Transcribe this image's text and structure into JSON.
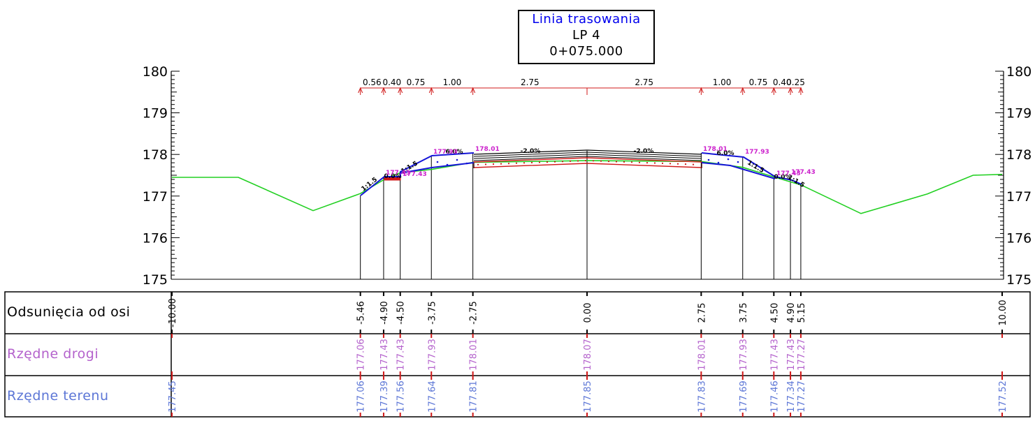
{
  "title_box": {
    "line1": "Linia trasowania",
    "line2": "LP 4",
    "line3": "0+075.000"
  },
  "colors": {
    "ground": "#22d022",
    "road": "#1515d8",
    "layers": "#d01818",
    "ink": "#000000",
    "magenta": "#cc22cc",
    "road_elev": "#b462cc",
    "terrain_elev": "#5c76d6",
    "title_blue": "#0000ee"
  },
  "y_axis": {
    "ticks": [
      "180",
      "179",
      "178",
      "177",
      "176",
      "175"
    ]
  },
  "dimensions": [
    "0.56",
    "0.40",
    "0.75",
    "1.00",
    "2.75",
    "2.75",
    "1.00",
    "0.75",
    "0.40",
    "0.25"
  ],
  "cross_slopes": [
    "-2.0%",
    "-2.0%"
  ],
  "slope_labels": [
    "1:1.5",
    "1:1.5",
    "1:1.5",
    "1:1.5",
    "6.0%",
    "0.0%",
    "6.0%",
    "0.0%"
  ],
  "point_elevations": [
    "178.01",
    "178.01",
    "177.93",
    "177.93",
    "177.43",
    "177.43",
    "177.43",
    "177.43"
  ],
  "table": {
    "rows": [
      {
        "label": "Odsunięcia od osi"
      },
      {
        "label": "Rzędne drogi"
      },
      {
        "label": "Rzędne terenu"
      }
    ],
    "offsets": [
      "-10.00",
      "-5.46",
      "-4.90",
      "-4.50",
      "-3.75",
      "-2.75",
      "0.00",
      "2.75",
      "3.75",
      "4.50",
      "4.90",
      "5.15",
      "10.00"
    ],
    "road_elevations": [
      "177.06",
      "177.43",
      "177.43",
      "177.93",
      "178.01",
      "178.07",
      "178.01",
      "177.93",
      "177.43",
      "177.43",
      "177.27"
    ],
    "terrain_elevations": [
      "177.45",
      "177.06",
      "177.39",
      "177.56",
      "177.64",
      "177.81",
      "177.85",
      "177.83",
      "177.69",
      "177.46",
      "177.34",
      "177.27",
      "177.52"
    ]
  }
}
